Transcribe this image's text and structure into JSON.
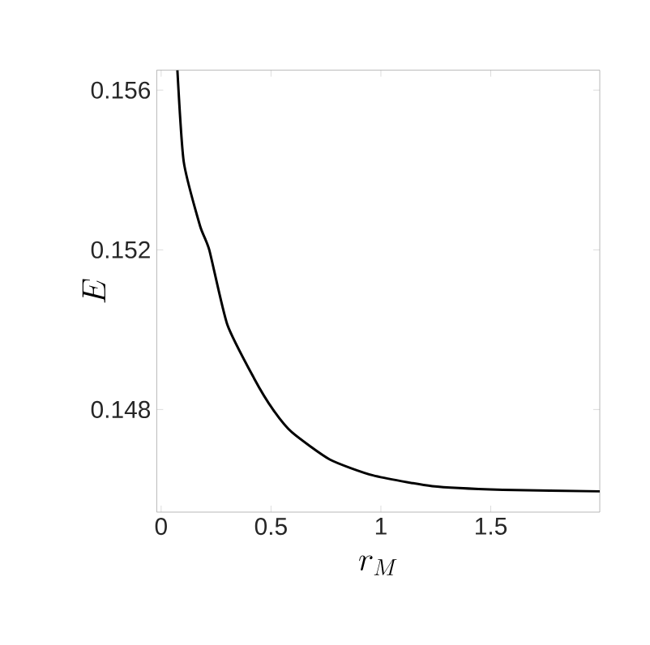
{
  "chart_data": {
    "type": "line",
    "xlabel": "r_M",
    "ylabel": "E",
    "x": [
      0.074,
      0.103,
      0.177,
      0.219,
      0.301,
      0.423,
      0.509,
      0.595,
      0.767,
      0.964,
      1.234,
      1.554,
      1.996
    ],
    "values": [
      0.1565,
      0.1542,
      0.1526,
      0.152,
      0.15013,
      0.14878,
      0.148,
      0.14743,
      0.14675,
      0.14635,
      0.14608,
      0.14599,
      0.14595
    ],
    "color": "#000000",
    "xlim": [
      -0.02,
      1.996
    ],
    "ylim": [
      0.14543,
      0.1565
    ],
    "xticks": [
      0,
      0.5,
      1,
      1.5
    ],
    "yticks": [
      0.148,
      0.152,
      0.156
    ],
    "grid": false,
    "marker": "none",
    "line_style": "solid"
  }
}
